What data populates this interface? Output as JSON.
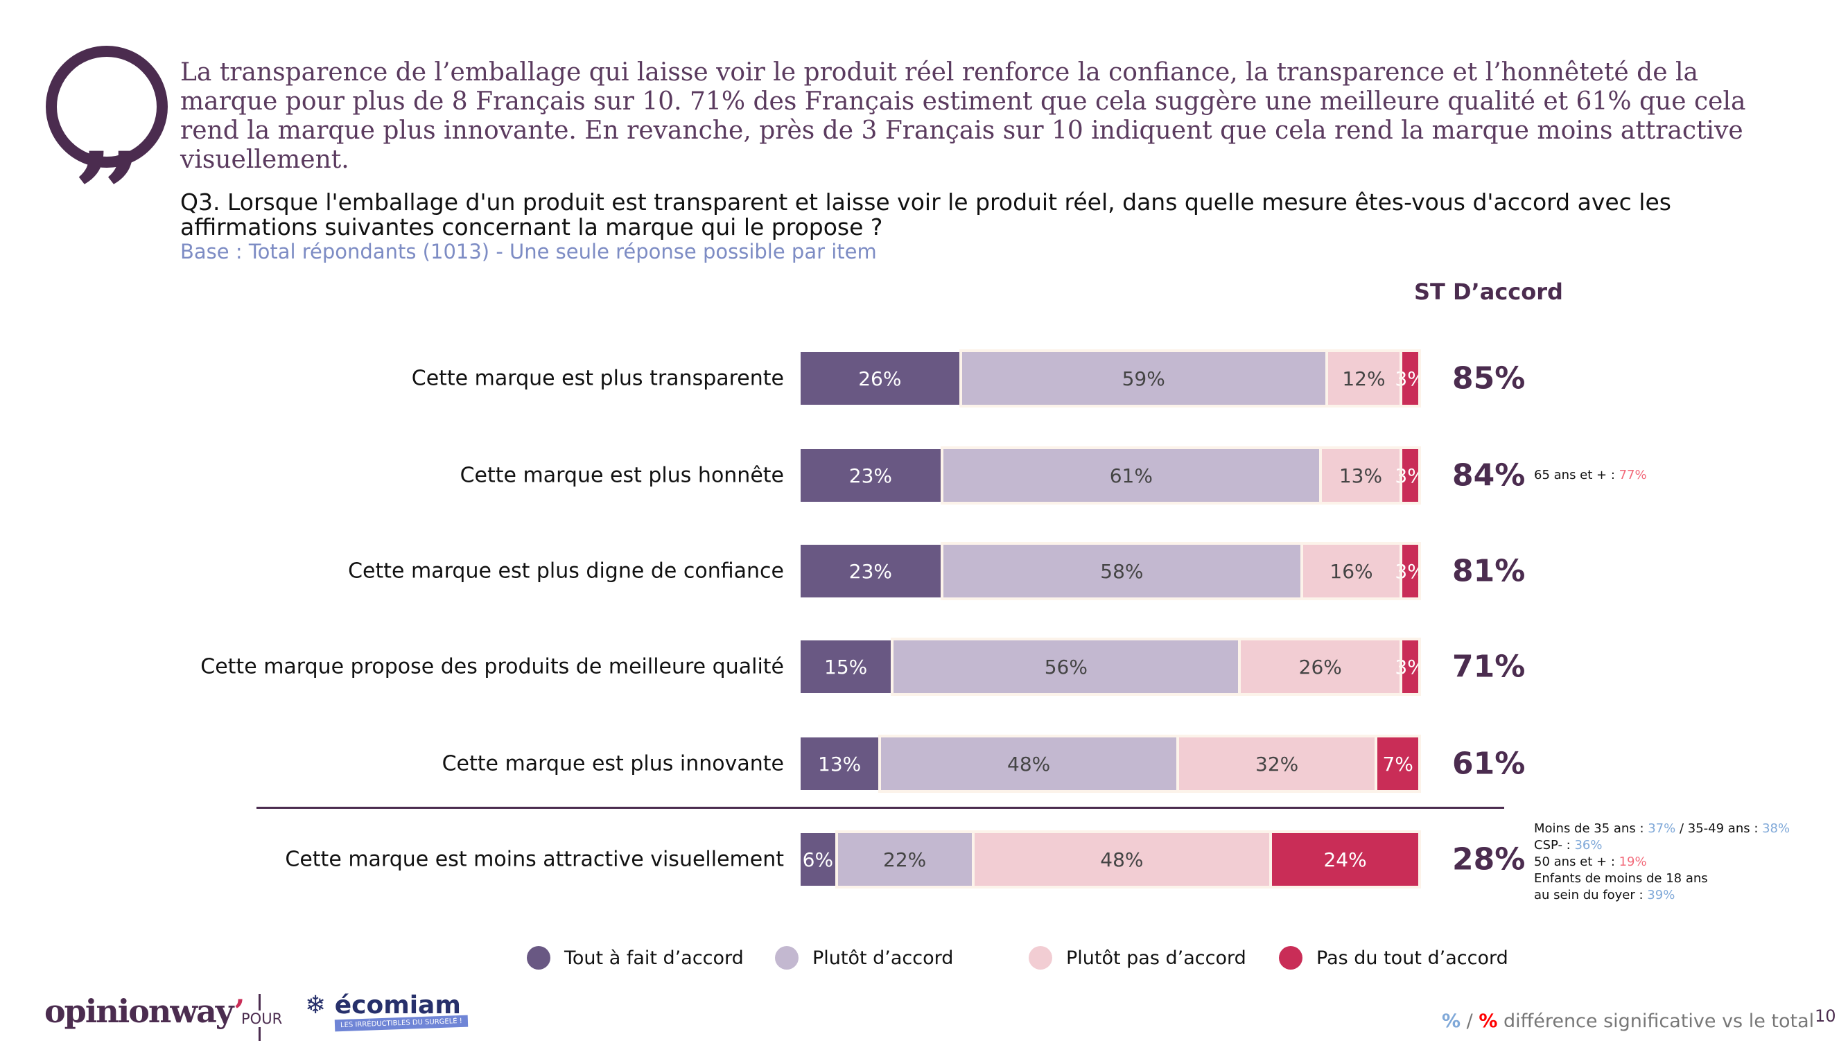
{
  "quote": {
    "icon": "quote-icon",
    "text": "La transparence de l’emballage qui laisse voir le produit réel renforce la confiance, la transparence et l’honnêteté de la marque pour plus de 8 Français sur 10. 71% des Français estiment que cela suggère une meilleure qualité et 61% que cela rend la marque plus innovante. En revanche, près de 3 Français sur 10 indiquent que cela rend la marque moins attractive visuellement."
  },
  "question": "Q3. Lorsque l'emballage d'un produit est transparent et laisse voir le produit réel, dans quelle mesure êtes-vous d'accord avec les affirmations suivantes concernant la marque qui le propose ?",
  "base": "Base : Total répondants (1013) - Une seule réponse possible par item",
  "st_header": "ST D’accord",
  "colors": {
    "tout_a_fait": "#695883",
    "plutot": "#c3b8d0",
    "plutot_pas": "#f2cdd3",
    "pas_du_tout": "#c92d57",
    "sig_higher": "#7fa8d8",
    "sig_lower": "#f26a7a"
  },
  "chart_data": {
    "type": "bar",
    "orientation": "horizontal-stacked-100",
    "categories": [
      "Cette marque est plus transparente",
      "Cette marque est plus honnête",
      "Cette marque est plus digne de confiance",
      "Cette marque propose des produits de meilleure qualité",
      "Cette marque est plus innovante",
      "Cette marque est moins attractive visuellement"
    ],
    "series": [
      {
        "name": "Tout à fait d’accord",
        "values": [
          26,
          23,
          23,
          15,
          13,
          6
        ]
      },
      {
        "name": "Plutôt d’accord",
        "values": [
          59,
          61,
          58,
          56,
          48,
          22
        ]
      },
      {
        "name": "Plutôt pas d’accord",
        "values": [
          12,
          13,
          16,
          26,
          32,
          48
        ]
      },
      {
        "name": "Pas du tout d’accord",
        "values": [
          3,
          3,
          3,
          3,
          7,
          24
        ]
      }
    ],
    "st_accord": [
      "85%",
      "84%",
      "81%",
      "71%",
      "61%",
      "28%"
    ],
    "legend": "bottom"
  },
  "notes": {
    "row2": [
      {
        "t": "65 ans et + : ",
        "v": "77%",
        "c": "red"
      }
    ],
    "row6": [
      [
        {
          "t": "Moins de 35 ans : ",
          "v": "37%",
          "c": "blue"
        },
        {
          "t": " / 35-49 ans : ",
          "v": "38%",
          "c": "blue"
        }
      ],
      [
        {
          "t": "CSP-  : ",
          "v": "36%",
          "c": "blue"
        }
      ],
      [
        {
          "t": "50 ans et + : ",
          "v": "19%",
          "c": "red"
        }
      ],
      [
        {
          "t": "Enfants de moins de 18 ans",
          "v": "",
          "c": ""
        }
      ],
      [
        {
          "t": "au sein du foyer : ",
          "v": "39%",
          "c": "blue"
        }
      ]
    ]
  },
  "footer": {
    "logo_left": "opinionway",
    "pour": "POUR",
    "logo_right": "écomiam",
    "logo_right_tagline": "LES IRRÉDUCTIBLES DU SURGELÉ !",
    "sig_mark": "%",
    "sig_sep": " / ",
    "sig_text": " différence significative vs le total",
    "page": "10"
  }
}
